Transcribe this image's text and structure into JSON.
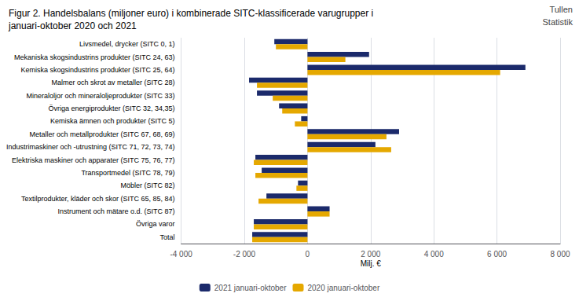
{
  "chart_data": {
    "type": "bar",
    "orientation": "horizontal",
    "title": "Figur 2. Handelsbalans (miljoner euro) i kombinerade SITC-klassificerade varugrupper i\njanuari-oktober 2020 och 2021",
    "annotations": [
      "Tullen",
      "Statistik"
    ],
    "x_label": "Milj. €",
    "categories": [
      "Livsmedel, drycker (SITC 0, 1)",
      "Mekaniska skogsindustrins produkter (SITC 24, 63)",
      "Kemiska skogsindustrins produkter (SITC 25, 64)",
      "Malmer och skrot av metaller (SITC 28)",
      "Mineraloljor och mineraloljeprodukter (SITC 33)",
      "Övriga energiprodukter (SITC 32, 34,35)",
      "Kemiska ämnen och produkter (SITC 5)",
      "Metaller och metallprodukter (SITC 67, 68, 69)",
      "Industrimaskiner och -utrustning (SITC 71, 72, 73, 74)",
      "Elektriska maskiner och apparater (SITC 75, 76, 77)",
      "Transportmedel (SITC 78, 79)",
      "Möbler (SITC 82)",
      "Textilprodukter, kläder och skor (SITC 65, 85, 84)",
      "Instrument och mätare o.d. (SITC 87)",
      "Övriga varor",
      "Total"
    ],
    "series": [
      {
        "name": "2021 januari-oktober",
        "color": "#1B2A6B",
        "values": [
          -1050,
          1950,
          6900,
          -1850,
          -1600,
          -900,
          -200,
          2900,
          2150,
          -1650,
          -1450,
          -300,
          -1300,
          700,
          -1700,
          -1750
        ]
      },
      {
        "name": "2020 januari-oktober",
        "color": "#E5A800",
        "values": [
          -1000,
          1200,
          6100,
          -1600,
          -1100,
          -800,
          -400,
          2500,
          2650,
          -1700,
          -1650,
          -350,
          -1550,
          700,
          -1700,
          -1750
        ]
      }
    ],
    "xlim": [
      -4000,
      8000
    ],
    "xticks": [
      {
        "value": -4000,
        "label": "-4 000"
      },
      {
        "value": -2000,
        "label": "-2 000"
      },
      0,
      {
        "value": 2000,
        "label": "2 000"
      },
      {
        "value": 4000,
        "label": "4 000"
      },
      {
        "value": 6000,
        "label": "6 000"
      },
      {
        "value": 8000,
        "label": "8 000"
      }
    ],
    "grid": true,
    "legend": "bottom"
  }
}
